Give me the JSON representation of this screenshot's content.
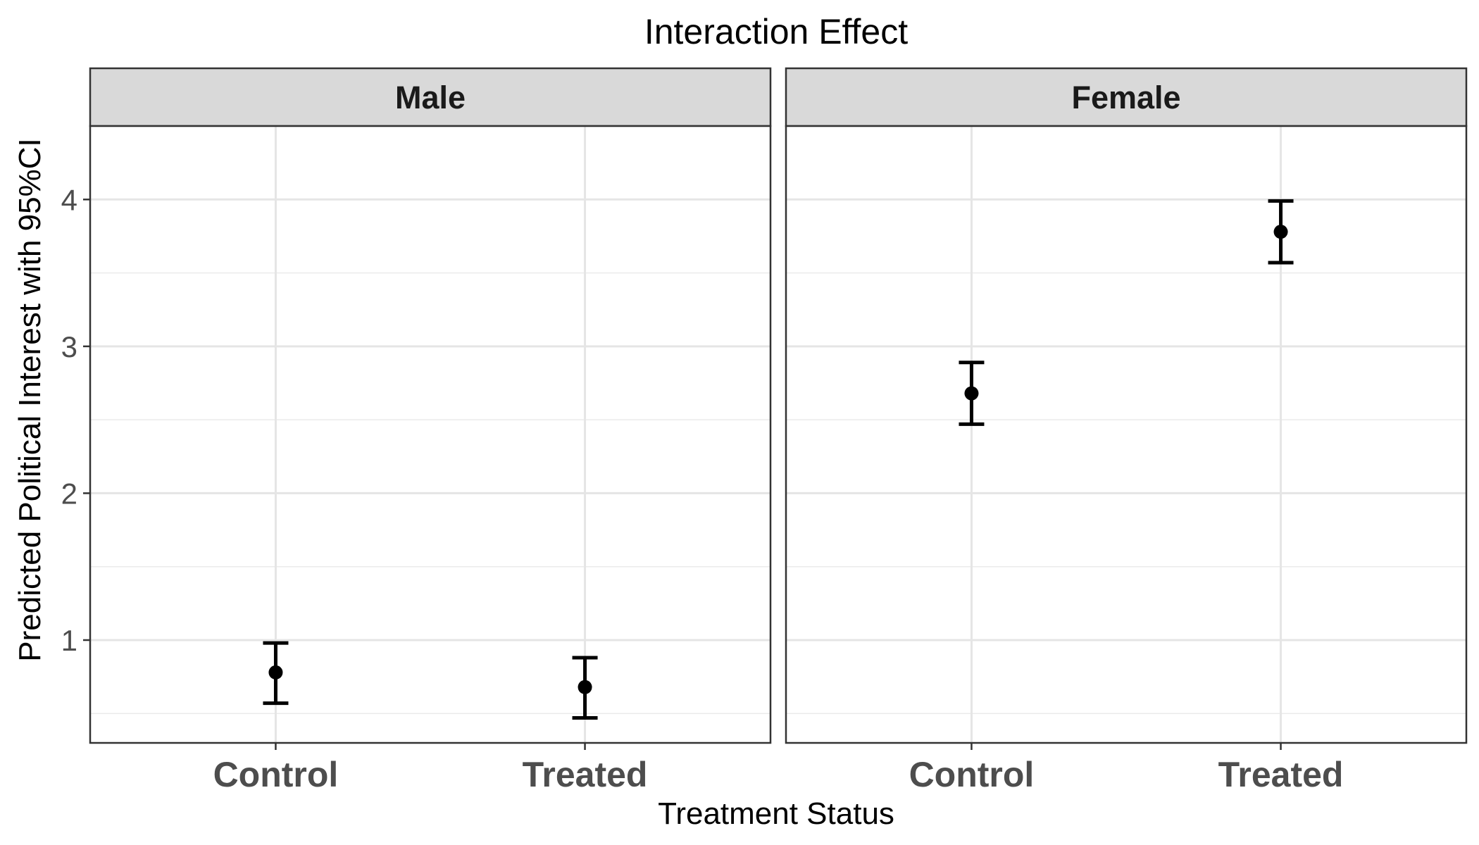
{
  "chart_data": {
    "type": "errorbar",
    "title": "Interaction Effect",
    "xlabel": "Treatment Status",
    "ylabel": "Predicted Political Interest with 95%CI",
    "ylim": [
      0.3,
      4.5
    ],
    "y_ticks": [
      1,
      2,
      3,
      4
    ],
    "categories": [
      "Control",
      "Treated"
    ],
    "grid": true,
    "facets": [
      {
        "label": "Male",
        "points": [
          {
            "x": "Control",
            "y": 0.78,
            "lower": 0.57,
            "upper": 0.98
          },
          {
            "x": "Treated",
            "y": 0.68,
            "lower": 0.47,
            "upper": 0.88
          }
        ]
      },
      {
        "label": "Female",
        "points": [
          {
            "x": "Control",
            "y": 2.68,
            "lower": 2.47,
            "upper": 2.89
          },
          {
            "x": "Treated",
            "y": 3.78,
            "lower": 3.57,
            "upper": 3.99
          }
        ]
      }
    ]
  }
}
